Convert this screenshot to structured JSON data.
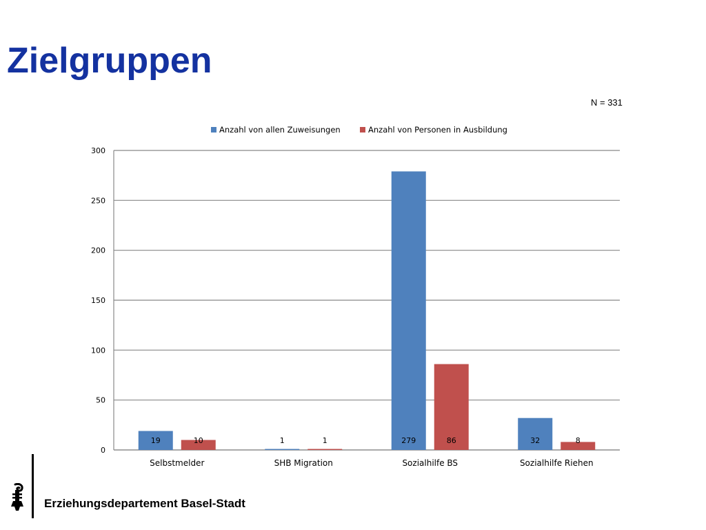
{
  "slide": {
    "title": "Zielgruppen",
    "n_note": "N = 331",
    "footer_text": "Erziehungsdepartement Basel-Stadt",
    "logo_icon": "basel-staff-icon"
  },
  "chart_data": {
    "type": "bar",
    "categories": [
      "Selbstmelder",
      "SHB Migration",
      "Sozialhilfe BS",
      "Sozialhilfe Riehen"
    ],
    "series": [
      {
        "name": "Anzahl von allen Zuweisungen",
        "values": [
          19,
          1,
          279,
          32
        ],
        "color": "#4f81bd"
      },
      {
        "name": "Anzahl von Personen in Ausbildung",
        "values": [
          10,
          1,
          86,
          8
        ],
        "color": "#c0504d"
      }
    ],
    "ylim": [
      0,
      300
    ],
    "yticks": [
      0,
      50,
      100,
      150,
      200,
      250,
      300
    ],
    "grid": true,
    "legend": "top",
    "data_labels": true
  }
}
